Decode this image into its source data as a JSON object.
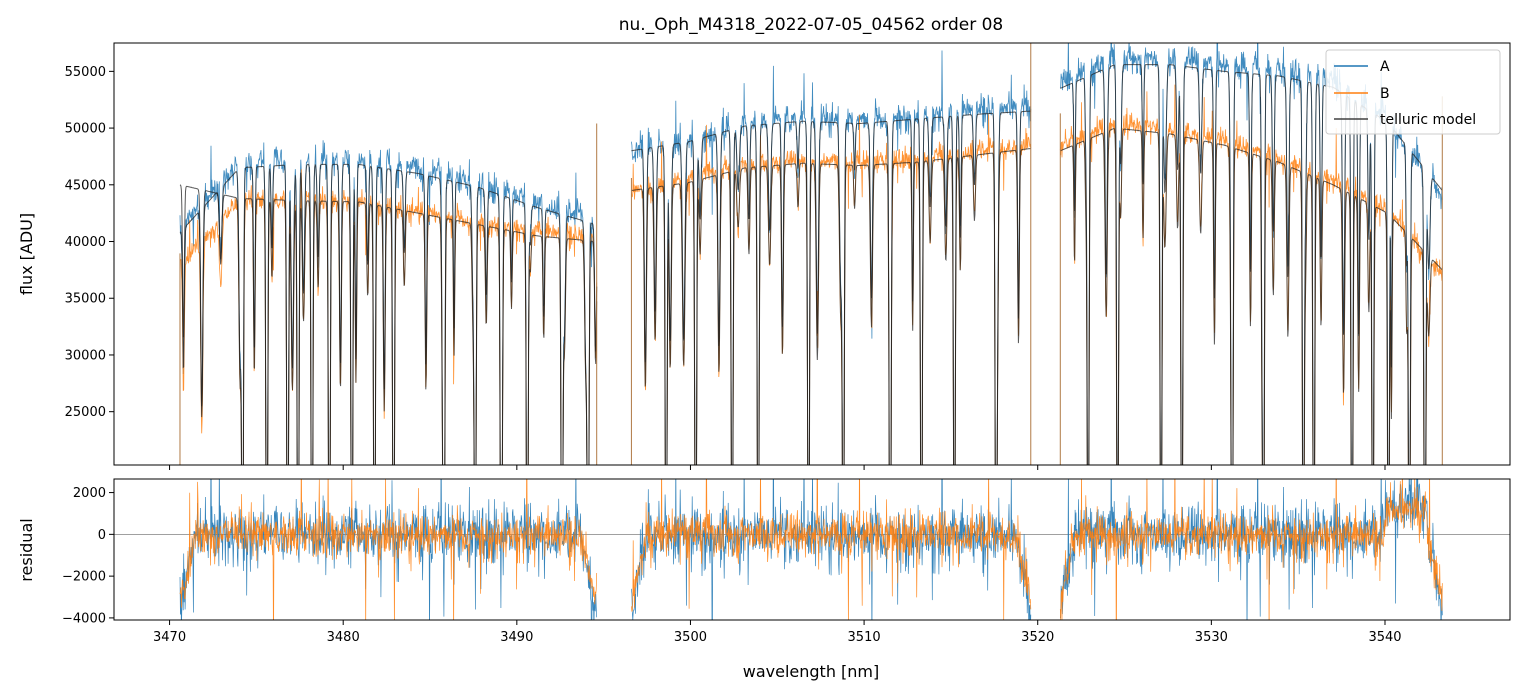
{
  "chart_data": [
    {
      "panel": "main",
      "type": "line",
      "title": "nu._Oph_M4318_2022-07-05_04562  order 08",
      "xlabel": "",
      "ylabel": "flux [ADU]",
      "xlim": [
        3466.8,
        3547.2
      ],
      "ylim": [
        20300,
        57500
      ],
      "yticks": [
        25000,
        30000,
        35000,
        40000,
        45000,
        50000,
        55000
      ],
      "ytick_labels": [
        "25000",
        "30000",
        "35000",
        "40000",
        "45000",
        "50000",
        "55000"
      ],
      "xticks": [
        3470,
        3480,
        3490,
        3500,
        3510,
        3520,
        3530,
        3540
      ],
      "legend": {
        "placement": "top-right",
        "entries": [
          {
            "label": "A",
            "color": "#1f77b4"
          },
          {
            "label": "B",
            "color": "#ff7f0e"
          },
          {
            "label": "telluric model",
            "color": "#404040"
          }
        ]
      },
      "segments": [
        {
          "x_start": 3470.6,
          "x_end": 3494.6,
          "A_continuum": [
            41000,
            47000,
            47200,
            47300,
            46500,
            45000,
            43500,
            42000
          ],
          "B_continuum": [
            38000,
            43500,
            43800,
            43600,
            42800,
            41800,
            41000,
            40500
          ],
          "model_A": [
            40800,
            46500,
            46800,
            46800,
            46000,
            44800,
            43000,
            41500
          ],
          "model_B": [
            45000,
            43800,
            43600,
            43500,
            42500,
            41500,
            40500,
            40000
          ]
        },
        {
          "x_start": 3496.6,
          "x_end": 3519.6,
          "A_continuum": [
            48000,
            49000,
            50500,
            51000,
            50800,
            51200,
            51800,
            52000
          ],
          "B_continuum": [
            44500,
            45500,
            46800,
            47200,
            47000,
            47400,
            48000,
            48600
          ],
          "model_A": [
            48000,
            48800,
            50200,
            50600,
            50400,
            50800,
            51200,
            51500
          ],
          "model_B": [
            44500,
            45200,
            46500,
            46900,
            46700,
            47000,
            47600,
            48200
          ]
        },
        {
          "x_start": 3521.3,
          "x_end": 3543.3,
          "A_continuum": [
            54000,
            56000,
            56200,
            55600,
            55200,
            54200,
            51000,
            44000
          ],
          "B_continuum": [
            48500,
            50500,
            50000,
            49000,
            47500,
            45500,
            43000,
            37000
          ],
          "model_A": [
            53500,
            55600,
            55600,
            55000,
            54600,
            53600,
            50500,
            44500
          ],
          "model_B": [
            48000,
            50000,
            49500,
            48500,
            47000,
            45000,
            42500,
            37500
          ]
        }
      ],
      "deep_lines_nm": [
        3474.2,
        3475.6,
        3476.8,
        3477.4,
        3478.2,
        3479.2,
        3480.5,
        3481.8,
        3482.9,
        3485.8,
        3487.6,
        3489.1,
        3490.6,
        3492.6,
        3494.1,
        3498.6,
        3500.3,
        3502.4,
        3503.9,
        3506.8,
        3508.8,
        3511.5,
        3513.3,
        3515.2,
        3517.6,
        3522.9,
        3524.6,
        3527.1,
        3528.3,
        3531.2,
        3533.0,
        3535.3,
        3535.9,
        3538.1,
        3539.3,
        3540.2,
        3541.4,
        3542.3
      ]
    },
    {
      "panel": "residual",
      "type": "line",
      "xlabel": "wavelength [nm]",
      "ylabel": "residual",
      "xlim": [
        3466.8,
        3547.2
      ],
      "ylim": [
        -4100,
        2650
      ],
      "yticks": [
        -4000,
        -2000,
        0,
        2000
      ],
      "ytick_labels": [
        "−4000",
        "−2000",
        "0",
        "2000"
      ],
      "xticks": [
        3470,
        3480,
        3490,
        3500,
        3510,
        3520,
        3530,
        3540
      ],
      "xtick_labels": [
        "3470",
        "3480",
        "3490",
        "3500",
        "3510",
        "3520",
        "3530",
        "3540"
      ],
      "zero_line": 0,
      "series": [
        {
          "name": "A",
          "color": "#1f77b4",
          "noise_rms": 650
        },
        {
          "name": "B",
          "color": "#ff7f0e",
          "noise_rms": 500
        }
      ]
    }
  ]
}
